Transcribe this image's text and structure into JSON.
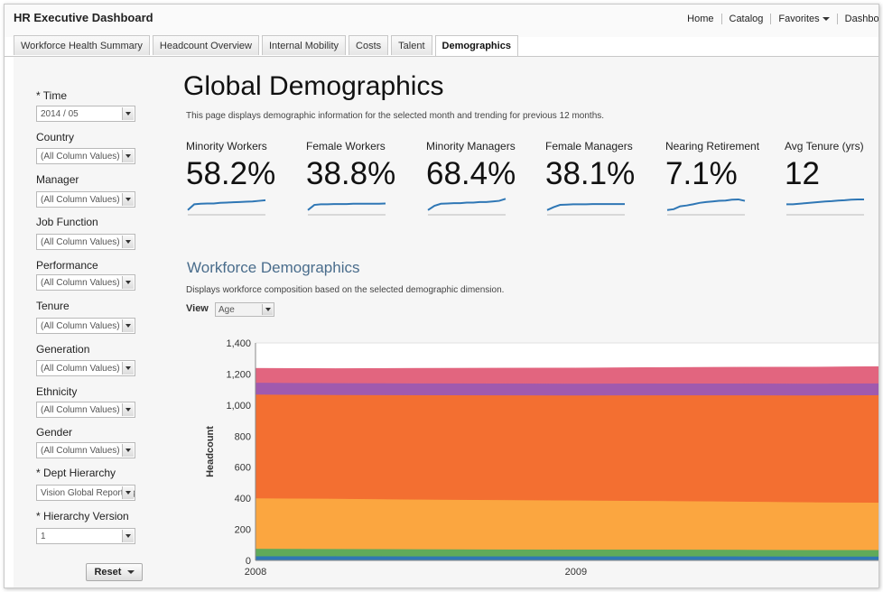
{
  "app": {
    "title": "HR Executive Dashboard",
    "nav": [
      "Home",
      "Catalog",
      "Favorites",
      "Dashboards"
    ]
  },
  "tabs": [
    {
      "label": "Workforce Health Summary",
      "active": false
    },
    {
      "label": "Headcount Overview",
      "active": false
    },
    {
      "label": "Internal Mobility",
      "active": false
    },
    {
      "label": "Costs",
      "active": false
    },
    {
      "label": "Talent",
      "active": false
    },
    {
      "label": "Demographics",
      "active": true
    }
  ],
  "filters": [
    {
      "label": "* Time",
      "value": "2014 / 05"
    },
    {
      "label": "Country",
      "value": "(All Column Values)"
    },
    {
      "label": "Manager",
      "value": "(All Column Values)"
    },
    {
      "label": "Job Function",
      "value": "(All Column Values)"
    },
    {
      "label": "Performance",
      "value": "(All Column Values)"
    },
    {
      "label": "Tenure",
      "value": "(All Column Values)"
    },
    {
      "label": "Generation",
      "value": "(All Column Values)"
    },
    {
      "label": "Ethnicity",
      "value": "(All Column Values)"
    },
    {
      "label": "Gender",
      "value": "(All Column Values)"
    },
    {
      "label": "* Dept Hierarchy",
      "value": "Vision Global Reporting"
    },
    {
      "label": "* Hierarchy Version",
      "value": "1"
    }
  ],
  "reset_label": "Reset",
  "page": {
    "title": "Global Demographics",
    "description": "This page displays demographic information for the selected month and trending for previous 12 months."
  },
  "kpis": [
    {
      "label": "Minority Workers",
      "value": "58.2%",
      "trend": [
        1,
        3,
        3.2,
        3.3,
        3.3,
        3.5,
        3.6,
        3.7,
        3.8,
        3.9,
        4,
        4.2,
        4.4
      ]
    },
    {
      "label": "Female Workers",
      "value": "38.8%",
      "trend": [
        1,
        2.8,
        3,
        3,
        3.1,
        3.1,
        3.1,
        3.2,
        3.2,
        3.2,
        3.2,
        3.2,
        3.3
      ]
    },
    {
      "label": "Minority Managers",
      "value": "68.4%",
      "trend": [
        1,
        2.5,
        3.2,
        3.3,
        3.4,
        3.4,
        3.6,
        3.6,
        3.8,
        3.8,
        4,
        4.2,
        4.9
      ]
    },
    {
      "label": "Female Managers",
      "value": "38.1%",
      "trend": [
        1,
        2,
        2.8,
        2.9,
        3,
        3,
        3,
        3.1,
        3.1,
        3.1,
        3.1,
        3.1,
        3.1
      ]
    },
    {
      "label": "Nearing Retirement",
      "value": "7.1%",
      "trend": [
        1,
        1.3,
        2.3,
        2.6,
        3,
        3.5,
        3.8,
        4,
        4.2,
        4.3,
        4.6,
        4.7,
        4.2
      ]
    },
    {
      "label": "Avg Tenure (yrs)",
      "value": "12",
      "trend": [
        3,
        3,
        3.2,
        3.4,
        3.6,
        3.8,
        4,
        4.1,
        4.3,
        4.4,
        4.6,
        4.7,
        4.7
      ]
    }
  ],
  "section": {
    "title": "Workforce Demographics",
    "description": "Displays workforce composition based on the selected demographic dimension.",
    "view_label": "View",
    "view_value": "Age"
  },
  "chart_data": {
    "type": "area",
    "stacked": true,
    "x": [
      2008.0,
      2008.25,
      2008.5,
      2008.75,
      2009.0,
      2009.25,
      2009.5,
      2009.75,
      2009.95
    ],
    "xticks": [
      "2008",
      "2009"
    ],
    "ylabel": "Headcount",
    "ylim": [
      0,
      1400
    ],
    "yticks": [
      "0",
      "200",
      "400",
      "600",
      "800",
      "1,000",
      "1,200",
      "1,400"
    ],
    "series": [
      {
        "color": "#2f77b5",
        "values": [
          28,
          28,
          27,
          27,
          27,
          27,
          27,
          26,
          26
        ]
      },
      {
        "color": "#60aa5a",
        "values": [
          48,
          47,
          46,
          45,
          44,
          44,
          43,
          42,
          42
        ]
      },
      {
        "color": "#fba640",
        "values": [
          325,
          323,
          320,
          318,
          316,
          313,
          310,
          307,
          305
        ]
      },
      {
        "color": "#f36f31",
        "values": [
          668,
          668,
          672,
          674,
          676,
          680,
          684,
          688,
          692
        ]
      },
      {
        "color": "#a05aae",
        "values": [
          76,
          76,
          76,
          76,
          76,
          76,
          76,
          76,
          76
        ]
      },
      {
        "color": "#e2657f",
        "values": [
          92,
          93,
          96,
          98,
          100,
          102,
          104,
          106,
          107
        ]
      }
    ]
  }
}
